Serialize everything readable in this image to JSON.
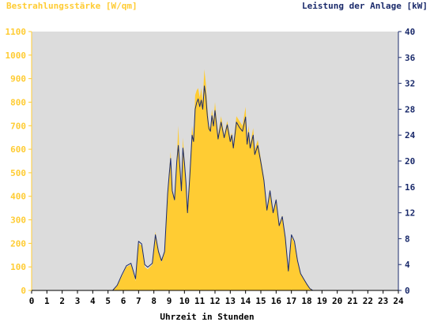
{
  "chart_data": {
    "type": "area",
    "left_title": "Bestrahlungsstärke [W/qm]",
    "right_title": "Leistung der Anlage [kW]",
    "xlabel": "Uhrzeit in Stunden",
    "x_ticks": [
      "0",
      "1",
      "2",
      "3",
      "4",
      "5",
      "6",
      "7",
      "8",
      "9",
      "10",
      "11",
      "12",
      "13",
      "14",
      "15",
      "16",
      "17",
      "18",
      "19",
      "20",
      "21",
      "22",
      "23",
      "24"
    ],
    "y_left_ticks": [
      "0",
      "100",
      "200",
      "300",
      "400",
      "500",
      "600",
      "700",
      "800",
      "900",
      "1000",
      "1100"
    ],
    "y_right_ticks": [
      "0",
      "4",
      "8",
      "12",
      "16",
      "20",
      "24",
      "28",
      "32",
      "36",
      "40"
    ],
    "xlim": [
      0,
      24
    ],
    "ylim_left": [
      0,
      1100
    ],
    "ylim_right": [
      0,
      40
    ],
    "grid": false,
    "colors": {
      "plot_bg": "#dcdcdc",
      "irradiance_fill": "#ffcc33",
      "left_axis": "#ffcc33",
      "power_line": "#1a2a6b",
      "right_axis": "#1a2a6b",
      "xlabel": "#000000"
    },
    "series": [
      {
        "axis": "left",
        "style": "filled-area",
        "x": [
          0,
          5.3,
          5.6,
          5.9,
          6.2,
          6.5,
          6.8,
          7.0,
          7.2,
          7.4,
          7.6,
          7.9,
          8.1,
          8.3,
          8.5,
          8.7,
          8.9,
          9.0,
          9.1,
          9.2,
          9.35,
          9.5,
          9.6,
          9.7,
          9.8,
          9.9,
          10.0,
          10.1,
          10.2,
          10.35,
          10.5,
          10.6,
          10.7,
          10.8,
          10.9,
          11.0,
          11.1,
          11.2,
          11.3,
          11.4,
          11.5,
          11.6,
          11.7,
          11.8,
          11.9,
          12.0,
          12.2,
          12.4,
          12.6,
          12.8,
          13.0,
          13.1,
          13.2,
          13.4,
          13.6,
          13.8,
          14.0,
          14.1,
          14.2,
          14.3,
          14.5,
          14.6,
          14.8,
          15.0,
          15.2,
          15.4,
          15.6,
          15.8,
          16.0,
          16.2,
          16.4,
          16.6,
          16.8,
          17.0,
          17.2,
          17.4,
          17.6,
          17.8,
          18.0,
          18.2,
          18.4,
          18.6,
          18.8,
          19.0,
          19.3,
          19.6,
          19.9,
          20.2,
          24
        ],
        "values": [
          0,
          0,
          20,
          60,
          100,
          110,
          40,
          200,
          190,
          100,
          90,
          110,
          250,
          170,
          120,
          160,
          420,
          500,
          590,
          420,
          380,
          560,
          700,
          540,
          420,
          650,
          560,
          460,
          320,
          500,
          700,
          650,
          830,
          850,
          860,
          820,
          860,
          800,
          940,
          880,
          780,
          700,
          690,
          770,
          720,
          800,
          660,
          740,
          660,
          720,
          650,
          670,
          620,
          740,
          720,
          700,
          780,
          640,
          700,
          620,
          690,
          600,
          640,
          560,
          480,
          340,
          430,
          330,
          390,
          280,
          320,
          230,
          80,
          230,
          200,
          120,
          70,
          50,
          30,
          10,
          0,
          0,
          0,
          0,
          0,
          0,
          0,
          0,
          0
        ]
      },
      {
        "axis": "right",
        "style": "line",
        "x": [
          0,
          5.3,
          5.6,
          5.9,
          6.2,
          6.5,
          6.8,
          7.0,
          7.2,
          7.4,
          7.6,
          7.9,
          8.1,
          8.3,
          8.5,
          8.7,
          8.9,
          9.0,
          9.1,
          9.2,
          9.35,
          9.5,
          9.6,
          9.7,
          9.8,
          9.9,
          10.0,
          10.1,
          10.2,
          10.35,
          10.5,
          10.6,
          10.7,
          10.8,
          10.9,
          11.0,
          11.1,
          11.2,
          11.3,
          11.4,
          11.5,
          11.6,
          11.7,
          11.8,
          11.9,
          12.0,
          12.2,
          12.4,
          12.6,
          12.8,
          13.0,
          13.1,
          13.2,
          13.4,
          13.6,
          13.8,
          14.0,
          14.1,
          14.2,
          14.3,
          14.5,
          14.6,
          14.8,
          15.0,
          15.2,
          15.4,
          15.6,
          15.8,
          16.0,
          16.2,
          16.4,
          16.6,
          16.8,
          17.0,
          17.2,
          17.4,
          17.6,
          17.8,
          18.0,
          18.2,
          18.4,
          18.6,
          18.8,
          19.0,
          19.3,
          19.6,
          19.9,
          20.2,
          24
        ],
        "values": [
          0,
          0,
          0.8,
          2.4,
          3.8,
          4.2,
          1.8,
          7.6,
          7.2,
          4.0,
          3.6,
          4.2,
          8.6,
          6.0,
          4.6,
          6.0,
          15.0,
          17.8,
          20.4,
          15.4,
          14.0,
          20.0,
          22.4,
          19.2,
          15.4,
          22.0,
          19.8,
          16.6,
          12.0,
          17.6,
          24.0,
          23.0,
          28.0,
          29.0,
          29.6,
          28.4,
          29.4,
          28.0,
          31.6,
          30.0,
          27.0,
          25.0,
          24.6,
          27.0,
          25.4,
          27.8,
          23.4,
          26.0,
          23.6,
          25.6,
          23.0,
          24.0,
          22.0,
          26.0,
          25.2,
          24.6,
          26.8,
          22.6,
          24.4,
          22.0,
          24.0,
          21.0,
          22.4,
          19.8,
          17.0,
          12.4,
          15.4,
          12.0,
          14.0,
          10.0,
          11.4,
          8.2,
          3.0,
          8.6,
          7.6,
          4.6,
          2.6,
          1.8,
          1.0,
          0.3,
          0,
          0,
          0,
          0,
          0,
          0,
          0,
          0,
          0
        ]
      }
    ]
  }
}
